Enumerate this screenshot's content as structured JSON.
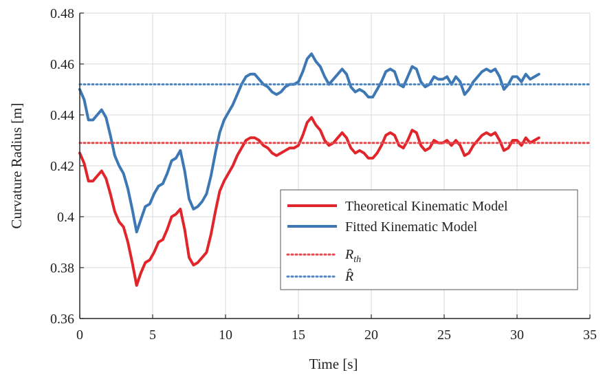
{
  "chart_data": {
    "type": "line",
    "xlabel": "Time [s]",
    "ylabel": "Curvature Radius [m]",
    "xlim": [
      0,
      35
    ],
    "ylim": [
      0.36,
      0.48
    ],
    "xticks": [
      0,
      5,
      10,
      15,
      20,
      25,
      30,
      35
    ],
    "xtick_labels": [
      "0",
      "5",
      "10",
      "15",
      "20",
      "25",
      "30",
      "35"
    ],
    "yticks": [
      0.36,
      0.38,
      0.4,
      0.42,
      0.44,
      0.46,
      0.48
    ],
    "ytick_labels": [
      "0.36",
      "0.38",
      "0.4",
      "0.42",
      "0.44",
      "0.46",
      "0.48"
    ],
    "grid": true,
    "legend_position": "lower-right",
    "series": [
      {
        "name": "Theoretical Kinematic Model",
        "style": "solid",
        "color": "#e1262b",
        "x": [
          0,
          0.3,
          0.6,
          0.9,
          1.2,
          1.5,
          1.8,
          2.1,
          2.4,
          2.7,
          3.0,
          3.3,
          3.6,
          3.9,
          4.2,
          4.5,
          4.8,
          5.1,
          5.4,
          5.7,
          6.0,
          6.3,
          6.6,
          6.9,
          7.2,
          7.5,
          7.8,
          8.1,
          8.4,
          8.7,
          9.0,
          9.3,
          9.6,
          9.9,
          10.2,
          10.5,
          10.8,
          11.1,
          11.4,
          11.7,
          12.0,
          12.3,
          12.6,
          12.9,
          13.2,
          13.5,
          13.8,
          14.1,
          14.4,
          14.7,
          15.0,
          15.3,
          15.6,
          15.9,
          16.2,
          16.5,
          16.8,
          17.1,
          17.4,
          17.7,
          18.0,
          18.3,
          18.6,
          18.9,
          19.2,
          19.5,
          19.8,
          20.1,
          20.4,
          20.7,
          21.0,
          21.3,
          21.6,
          21.9,
          22.2,
          22.5,
          22.8,
          23.1,
          23.4,
          23.7,
          24.0,
          24.3,
          24.6,
          24.9,
          25.2,
          25.5,
          25.8,
          26.1,
          26.4,
          26.7,
          27.0,
          27.3,
          27.6,
          27.9,
          28.2,
          28.5,
          28.8,
          29.1,
          29.4,
          29.7,
          30.0,
          30.3,
          30.6,
          30.9,
          31.2,
          31.5
        ],
        "values": [
          0.425,
          0.421,
          0.414,
          0.414,
          0.416,
          0.418,
          0.415,
          0.409,
          0.402,
          0.398,
          0.396,
          0.39,
          0.382,
          0.373,
          0.378,
          0.382,
          0.383,
          0.386,
          0.39,
          0.391,
          0.395,
          0.4,
          0.401,
          0.403,
          0.395,
          0.384,
          0.381,
          0.382,
          0.384,
          0.386,
          0.393,
          0.402,
          0.41,
          0.414,
          0.417,
          0.42,
          0.424,
          0.427,
          0.43,
          0.431,
          0.431,
          0.43,
          0.428,
          0.427,
          0.425,
          0.424,
          0.425,
          0.426,
          0.427,
          0.427,
          0.428,
          0.432,
          0.437,
          0.439,
          0.436,
          0.434,
          0.43,
          0.428,
          0.429,
          0.431,
          0.433,
          0.431,
          0.427,
          0.425,
          0.426,
          0.425,
          0.423,
          0.423,
          0.425,
          0.428,
          0.432,
          0.433,
          0.432,
          0.428,
          0.427,
          0.43,
          0.434,
          0.433,
          0.428,
          0.426,
          0.427,
          0.43,
          0.429,
          0.429,
          0.43,
          0.428,
          0.43,
          0.428,
          0.424,
          0.425,
          0.428,
          0.43,
          0.432,
          0.433,
          0.432,
          0.433,
          0.43,
          0.426,
          0.427,
          0.43,
          0.43,
          0.428,
          0.431,
          0.429,
          0.43,
          0.431
        ]
      },
      {
        "name": "Fitted Kinematic Model",
        "style": "solid",
        "color": "#3d78b5",
        "x": [
          0,
          0.3,
          0.6,
          0.9,
          1.2,
          1.5,
          1.8,
          2.1,
          2.4,
          2.7,
          3.0,
          3.3,
          3.6,
          3.9,
          4.2,
          4.5,
          4.8,
          5.1,
          5.4,
          5.7,
          6.0,
          6.3,
          6.6,
          6.9,
          7.2,
          7.5,
          7.8,
          8.1,
          8.4,
          8.7,
          9.0,
          9.3,
          9.6,
          9.9,
          10.2,
          10.5,
          10.8,
          11.1,
          11.4,
          11.7,
          12.0,
          12.3,
          12.6,
          12.9,
          13.2,
          13.5,
          13.8,
          14.1,
          14.4,
          14.7,
          15.0,
          15.3,
          15.6,
          15.9,
          16.2,
          16.5,
          16.8,
          17.1,
          17.4,
          17.7,
          18.0,
          18.3,
          18.6,
          18.9,
          19.2,
          19.5,
          19.8,
          20.1,
          20.4,
          20.7,
          21.0,
          21.3,
          21.6,
          21.9,
          22.2,
          22.5,
          22.8,
          23.1,
          23.4,
          23.7,
          24.0,
          24.3,
          24.6,
          24.9,
          25.2,
          25.5,
          25.8,
          26.1,
          26.4,
          26.7,
          27.0,
          27.3,
          27.6,
          27.9,
          28.2,
          28.5,
          28.8,
          29.1,
          29.4,
          29.7,
          30.0,
          30.3,
          30.6,
          30.9,
          31.2,
          31.5
        ],
        "values": [
          0.45,
          0.446,
          0.438,
          0.438,
          0.44,
          0.442,
          0.439,
          0.432,
          0.424,
          0.42,
          0.417,
          0.411,
          0.403,
          0.394,
          0.399,
          0.404,
          0.405,
          0.409,
          0.412,
          0.413,
          0.417,
          0.422,
          0.423,
          0.426,
          0.418,
          0.407,
          0.403,
          0.404,
          0.406,
          0.409,
          0.416,
          0.425,
          0.433,
          0.438,
          0.441,
          0.444,
          0.448,
          0.452,
          0.455,
          0.456,
          0.456,
          0.454,
          0.452,
          0.451,
          0.449,
          0.448,
          0.449,
          0.451,
          0.452,
          0.452,
          0.453,
          0.457,
          0.462,
          0.464,
          0.461,
          0.459,
          0.455,
          0.452,
          0.454,
          0.456,
          0.458,
          0.456,
          0.451,
          0.449,
          0.45,
          0.449,
          0.447,
          0.447,
          0.45,
          0.453,
          0.457,
          0.458,
          0.457,
          0.452,
          0.451,
          0.455,
          0.459,
          0.458,
          0.453,
          0.451,
          0.452,
          0.455,
          0.454,
          0.454,
          0.455,
          0.452,
          0.455,
          0.453,
          0.448,
          0.45,
          0.453,
          0.455,
          0.457,
          0.458,
          0.457,
          0.458,
          0.455,
          0.45,
          0.452,
          0.455,
          0.455,
          0.453,
          0.456,
          0.454,
          0.455,
          0.456
        ]
      },
      {
        "name": "R_th",
        "style": "dotted",
        "color": "#e8474c",
        "x": [
          0,
          35
        ],
        "values": [
          0.429,
          0.429
        ]
      },
      {
        "name": "R̂",
        "style": "dotted",
        "color": "#4f86c0",
        "x": [
          0,
          35
        ],
        "values": [
          0.452,
          0.452
        ]
      }
    ]
  },
  "legend": {
    "items": [
      {
        "text": "Theoretical Kinematic Model",
        "color": "#e1262b",
        "style": "solid"
      },
      {
        "text": "Fitted Kinematic Model",
        "color": "#3d78b5",
        "style": "solid"
      },
      {
        "math_base": "R",
        "math_sub": "th",
        "color": "#e8474c",
        "style": "dotted"
      },
      {
        "math_base": "R̂",
        "color": "#4f86c0",
        "style": "dotted"
      }
    ]
  },
  "colors": {
    "grid": "#d9d9d9",
    "axis": "#262626",
    "background": "#ffffff"
  }
}
